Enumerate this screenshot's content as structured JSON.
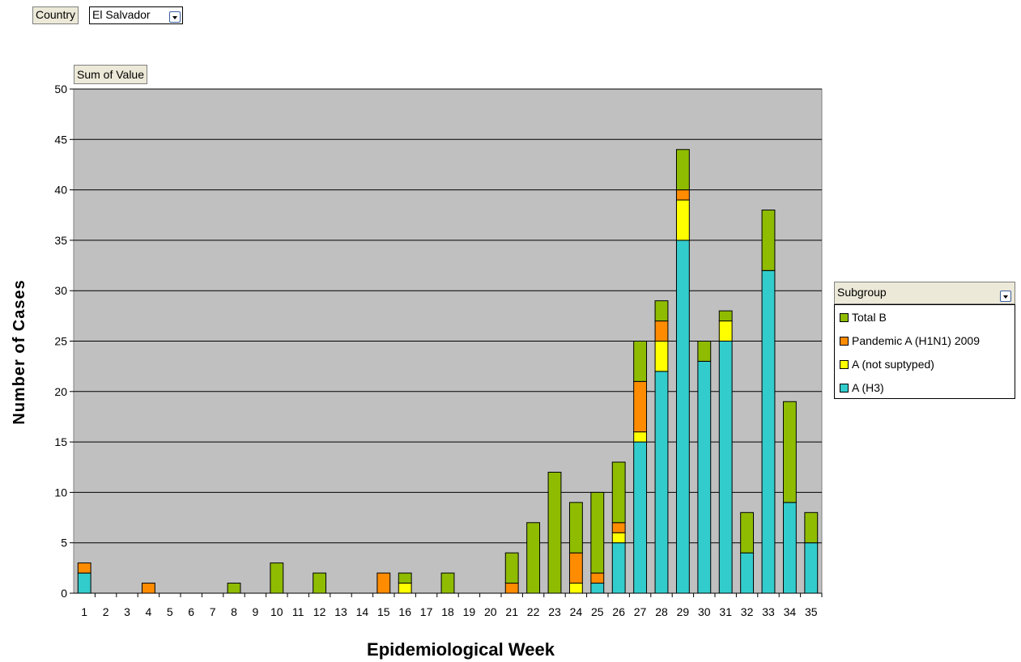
{
  "filter": {
    "field_label": "Country",
    "selected_value": "El Salvador"
  },
  "data_field": {
    "label": "Sum of Value"
  },
  "legend": {
    "header": "Subgroup",
    "items": [
      {
        "label": "Total B",
        "color": "#8fbc00"
      },
      {
        "label": "Pandemic A (H1N1) 2009",
        "color": "#ff8c00"
      },
      {
        "label": "A (not suptyped)",
        "color": "#ffff00"
      },
      {
        "label": "A (H3)",
        "color": "#33cccc"
      }
    ]
  },
  "chart_data": {
    "type": "bar",
    "stacked": true,
    "xlabel": "Epidemiological Week",
    "ylabel": "Number of Cases",
    "ylim": [
      0,
      50
    ],
    "yticks": [
      0,
      5,
      10,
      15,
      20,
      25,
      30,
      35,
      40,
      45,
      50
    ],
    "grid": true,
    "plot_background": "#c0c0c0",
    "legend_position": "right",
    "categories": [
      "1",
      "2",
      "3",
      "4",
      "5",
      "6",
      "7",
      "8",
      "9",
      "10",
      "11",
      "12",
      "13",
      "14",
      "15",
      "16",
      "17",
      "18",
      "19",
      "20",
      "21",
      "22",
      "23",
      "24",
      "25",
      "26",
      "27",
      "28",
      "29",
      "30",
      "31",
      "32",
      "33",
      "34",
      "35"
    ],
    "series": [
      {
        "name": "A (H3)",
        "color": "#33cccc",
        "values": [
          2,
          0,
          0,
          0,
          0,
          0,
          0,
          0,
          0,
          0,
          0,
          0,
          0,
          0,
          0,
          0,
          0,
          0,
          0,
          0,
          0,
          0,
          0,
          0,
          1,
          5,
          15,
          22,
          35,
          23,
          25,
          4,
          32,
          9,
          5
        ]
      },
      {
        "name": "A (not suptyped)",
        "color": "#ffff00",
        "values": [
          0,
          0,
          0,
          0,
          0,
          0,
          0,
          0,
          0,
          0,
          0,
          0,
          0,
          0,
          0,
          1,
          0,
          0,
          0,
          0,
          0,
          0,
          0,
          1,
          0,
          1,
          1,
          3,
          4,
          0,
          2,
          0,
          0,
          0,
          0
        ]
      },
      {
        "name": "Pandemic A (H1N1) 2009",
        "color": "#ff8c00",
        "values": [
          1,
          0,
          0,
          1,
          0,
          0,
          0,
          0,
          0,
          0,
          0,
          0,
          0,
          0,
          2,
          0,
          0,
          0,
          0,
          0,
          1,
          0,
          0,
          3,
          1,
          1,
          5,
          2,
          1,
          0,
          0,
          0,
          0,
          0,
          0
        ]
      },
      {
        "name": "Total B",
        "color": "#8fbc00",
        "values": [
          0,
          0,
          0,
          0,
          0,
          0,
          0,
          1,
          0,
          3,
          0,
          2,
          0,
          0,
          0,
          1,
          0,
          2,
          0,
          0,
          3,
          7,
          12,
          5,
          8,
          6,
          4,
          2,
          4,
          2,
          1,
          4,
          6,
          10,
          3
        ]
      }
    ]
  }
}
